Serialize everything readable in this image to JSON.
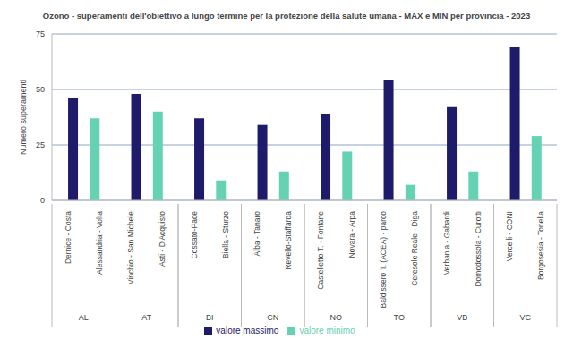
{
  "chart_data": {
    "type": "bar",
    "title": "Ozono - superamenti dell'obiettivo a lungo termine per la protezione della salute umana - MAX e MIN per provincia - 2023",
    "y_label": "Numero superamenti",
    "categories": [
      "Dernice - Costa",
      "Alessandria - Volta",
      "Vinchio - San Michele",
      "Asti - D'Acquisto",
      "Cossato-Pace",
      "Biella - Sturzo",
      "Alba - Tanaro",
      "Revello-Staffarda",
      "Castelletto T. - Fontane",
      "Novara - Arpa",
      "Baldissero T. (ACEA) - parco",
      "Ceresole Reale - Diga",
      "Verbania - Gabardi",
      "Domodossola - Curotti",
      "Vercelli - CONI",
      "Borgosesia - Tonella"
    ],
    "groups": [
      "AL",
      "AL",
      "AT",
      "AT",
      "BI",
      "BI",
      "CN",
      "CN",
      "NO",
      "NO",
      "TO",
      "TO",
      "VB",
      "VB",
      "VC",
      "VC"
    ],
    "series": [
      {
        "name": "valore minimo",
        "color": "#66d2b4",
        "values": [
          null,
          37,
          null,
          40,
          null,
          9,
          null,
          13,
          null,
          22,
          null,
          7,
          null,
          13,
          null,
          29
        ]
      },
      {
        "name": "valore massimo",
        "color": "#1e1b6b",
        "values": [
          46,
          null,
          48,
          null,
          37,
          null,
          34,
          null,
          39,
          null,
          54,
          null,
          42,
          null,
          69,
          null
        ]
      }
    ],
    "ylim": [
      0,
      75
    ],
    "yticks": [
      0,
      25,
      50,
      75
    ],
    "grid": true,
    "legend": "bottom"
  }
}
